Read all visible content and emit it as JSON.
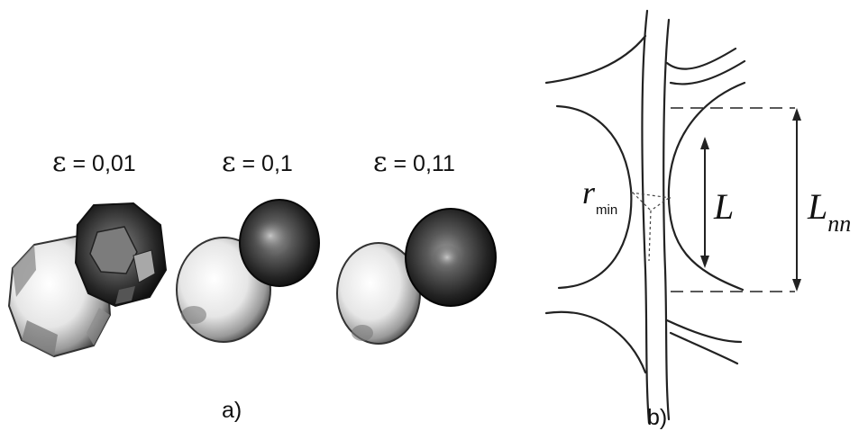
{
  "panel_a": {
    "label": "a)",
    "pairs": [
      {
        "epsilon_symbol": "ε",
        "epsilon_text": "= 0,01"
      },
      {
        "epsilon_symbol": "ε",
        "epsilon_text": "= 0,1"
      },
      {
        "epsilon_symbol": "ε",
        "epsilon_text": "= 0,11"
      }
    ]
  },
  "panel_b": {
    "label": "b)",
    "r_symbol": "r",
    "r_subscript": "min",
    "L_label": "L",
    "Lnn_main": "L",
    "Lnn_subscript": "nn"
  }
}
